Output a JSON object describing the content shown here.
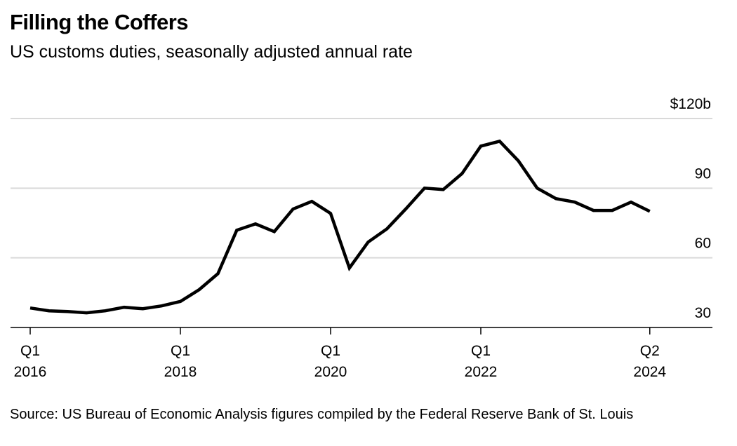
{
  "header": {
    "title": "Filling the Coffers",
    "subtitle": "US customs duties, seasonally adjusted annual rate"
  },
  "footer": {
    "source": "Source: US Bureau of Economic Analysis figures compiled by the Federal Reserve Bank of St. Louis"
  },
  "chart_data": {
    "type": "line",
    "title": "Filling the Coffers",
    "subtitle": "US customs duties, seasonally adjusted annual rate",
    "xlabel": "",
    "ylabel": "",
    "units": "billions of US dollars",
    "ylim": [
      30,
      120
    ],
    "yticks": [
      {
        "value": 120,
        "label": "$120b"
      },
      {
        "value": 90,
        "label": "90"
      },
      {
        "value": 60,
        "label": "60"
      },
      {
        "value": 30,
        "label": "30"
      }
    ],
    "grid": true,
    "legend": "none",
    "xticks": [
      {
        "index": 0,
        "line1": "Q1",
        "line2": "2016"
      },
      {
        "index": 8,
        "line1": "Q1",
        "line2": "2018"
      },
      {
        "index": 16,
        "line1": "Q1",
        "line2": "2020"
      },
      {
        "index": 24,
        "line1": "Q1",
        "line2": "2022"
      },
      {
        "index": 33,
        "line1": "Q2",
        "line2": "2024"
      }
    ],
    "x": [
      "2016Q1",
      "2016Q2",
      "2016Q3",
      "2016Q4",
      "2017Q1",
      "2017Q2",
      "2017Q3",
      "2017Q4",
      "2018Q1",
      "2018Q2",
      "2018Q3",
      "2018Q4",
      "2019Q1",
      "2019Q2",
      "2019Q3",
      "2019Q4",
      "2020Q1",
      "2020Q2",
      "2020Q3",
      "2020Q4",
      "2021Q1",
      "2021Q2",
      "2021Q3",
      "2021Q4",
      "2022Q1",
      "2022Q2",
      "2022Q3",
      "2022Q4",
      "2023Q1",
      "2023Q2",
      "2023Q3",
      "2023Q4",
      "2024Q1",
      "2024Q2"
    ],
    "series": [
      {
        "name": "US customs duties",
        "color": "#000000",
        "values": [
          38.4,
          37.2,
          36.9,
          36.3,
          37.2,
          38.7,
          38.1,
          39.3,
          41.2,
          46.3,
          53.2,
          71.9,
          74.6,
          71.3,
          81.0,
          84.3,
          79.1,
          55.6,
          66.8,
          72.5,
          81.0,
          90.0,
          89.4,
          96.3,
          108.1,
          110.2,
          101.8,
          90.0,
          85.5,
          84.0,
          80.4,
          80.4,
          84.0,
          80.0
        ]
      }
    ]
  }
}
